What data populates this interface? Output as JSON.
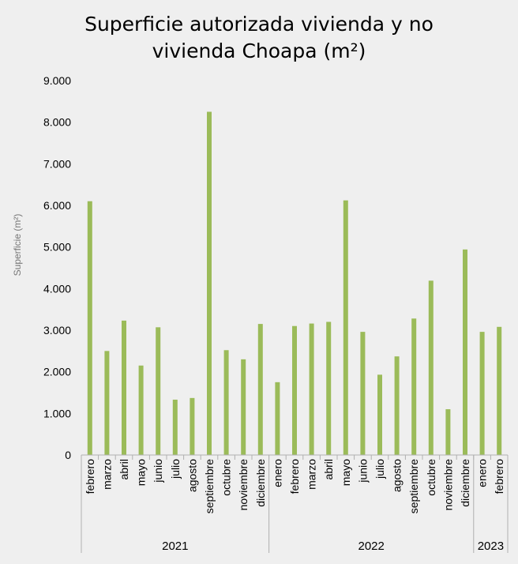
{
  "chart_data": {
    "type": "bar",
    "title_lines": [
      "Superficie autorizada vivienda y no",
      "vivienda Choapa (m²)"
    ],
    "ylabel": "Superficie (m²)",
    "xlabel": "",
    "ylim": [
      0,
      9000
    ],
    "yticks": [
      "0",
      "1.000",
      "2.000",
      "3.000",
      "4.000",
      "5.000",
      "6.000",
      "7.000",
      "8.000",
      "9.000"
    ],
    "bar_color": "#9bbb59",
    "grid": false,
    "legend": "none",
    "groups": [
      {
        "year": "2021",
        "months": [
          "febrero",
          "marzo",
          "abril",
          "mayo",
          "junio",
          "julio",
          "agosto",
          "septiembre",
          "octubre",
          "noviembre",
          "diciembre"
        ]
      },
      {
        "year": "2022",
        "months": [
          "enero",
          "febrero",
          "marzo",
          "abril",
          "mayo",
          "junio",
          "julio",
          "agosto",
          "septiembre",
          "octubre",
          "noviembre",
          "diciembre"
        ]
      },
      {
        "year": "2023",
        "months": [
          "enero",
          "febrero"
        ]
      }
    ],
    "values": [
      6100,
      2500,
      3230,
      2150,
      3070,
      1330,
      1370,
      8250,
      2520,
      2300,
      3150,
      1750,
      3100,
      3160,
      3200,
      6120,
      2960,
      1930,
      2370,
      3280,
      4190,
      1100,
      4940,
      2960,
      3080
    ]
  }
}
